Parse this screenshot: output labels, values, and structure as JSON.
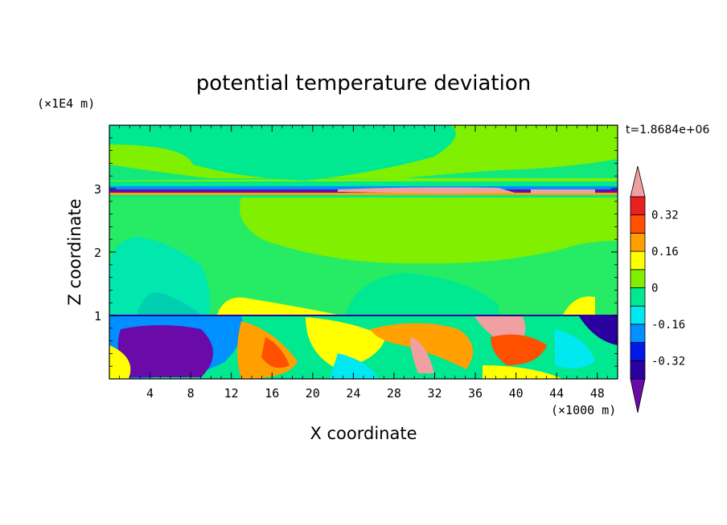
{
  "chart_data": {
    "type": "heatmap",
    "title": "potential temperature deviation",
    "xlabel": "X coordinate",
    "ylabel": "Z coordinate",
    "x_unit": "(×1000 m)",
    "y_unit": "(×1E4 m)",
    "time_label": "t=1.8684e+06",
    "xlim": [
      0,
      50
    ],
    "ylim": [
      0,
      4
    ],
    "x_ticks": [
      "4",
      "8",
      "12",
      "16",
      "20",
      "24",
      "28",
      "32",
      "36",
      "40",
      "44",
      "48"
    ],
    "x_tick_values": [
      4,
      8,
      12,
      16,
      20,
      24,
      28,
      32,
      36,
      40,
      44,
      48
    ],
    "y_ticks": [
      "1",
      "2",
      "3"
    ],
    "y_tick_values": [
      1,
      2,
      3
    ],
    "colorbar": {
      "labels": [
        "0.32",
        "0.16",
        "0",
        "-0.16",
        "-0.32"
      ],
      "label_values": [
        0.32,
        0.16,
        0,
        -0.16,
        -0.32
      ],
      "levels": [
        -0.4,
        -0.32,
        -0.24,
        -0.16,
        -0.08,
        0,
        0.08,
        0.16,
        0.24,
        0.32,
        0.4
      ],
      "colors": [
        "#6a0aa8",
        "#2a00a0",
        "#0018e8",
        "#0090ff",
        "#00e8f0",
        "#00e890",
        "#80f000",
        "#ffff00",
        "#ffa000",
        "#ff5000",
        "#e82020",
        "#f0a0a0"
      ],
      "extend": "both"
    }
  }
}
